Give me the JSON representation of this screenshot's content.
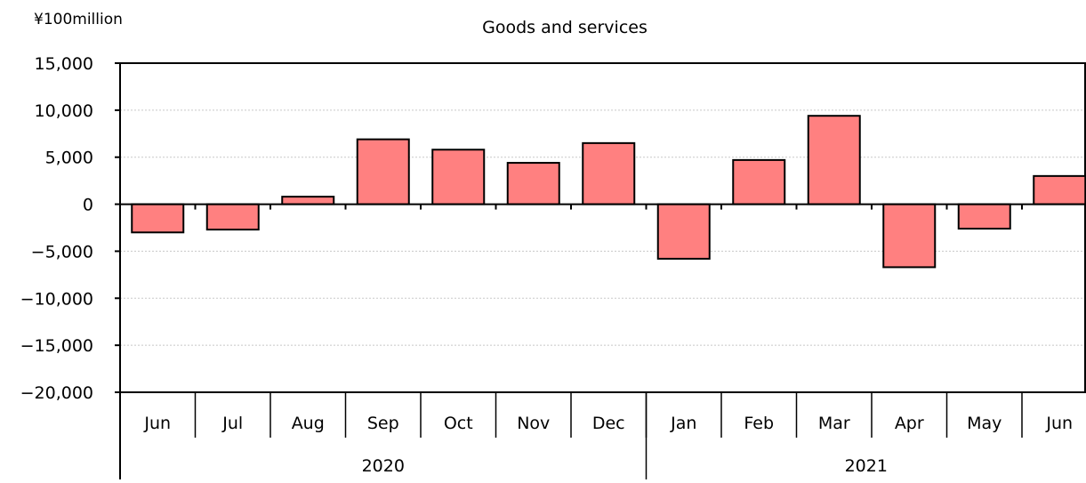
{
  "chart_data": {
    "type": "bar",
    "title": "Goods and services",
    "unit_label": "¥100million",
    "categories": [
      "Jun",
      "Jul",
      "Aug",
      "Sep",
      "Oct",
      "Nov",
      "Dec",
      "Jan",
      "Feb",
      "Mar",
      "Apr",
      "May",
      "Jun"
    ],
    "groups": [
      {
        "label": "2020",
        "count": 7
      },
      {
        "label": "2021",
        "count": 6
      }
    ],
    "values": [
      -3000,
      -2700,
      800,
      6900,
      5800,
      4400,
      6500,
      -5800,
      4700,
      9400,
      -6700,
      -2600,
      3000
    ],
    "ylim": [
      -20000,
      15000
    ],
    "yticks": [
      15000,
      10000,
      5000,
      0,
      -5000,
      -10000,
      -15000,
      -20000
    ],
    "ytick_labels": [
      "15,000",
      "10,000",
      "5,000",
      "0",
      "−5,000",
      "−10,000",
      "−15,000",
      "−20,000"
    ],
    "grid": true,
    "bar_color": "#ff8080"
  }
}
